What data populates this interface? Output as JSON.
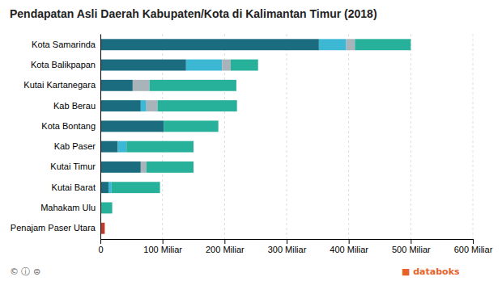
{
  "chart_data": {
    "type": "bar",
    "orientation": "horizontal",
    "stacked": true,
    "title": "Pendapatan Asli Daerah Kabupaten/Kota di Kalimantan Timur (2018)",
    "categories": [
      "Penajam Paser Utara",
      "Mahakam Ulu",
      "Kutai Barat",
      "Kutai Timur",
      "Kab Paser",
      "Kota Bontang",
      "Kab Berau",
      "Kutai Kartanegara",
      "Kota Balikpapan",
      "Kota Samarinda"
    ],
    "series": [
      {
        "colors": [
          "#c0392b",
          "#1c6c80",
          "#1c6c80",
          "#1c6c80",
          "#1c6c80",
          "#1c6c80",
          "#1c6c80",
          "#1c6c80",
          "#1c6c80",
          "#1c6c80"
        ],
        "values": [
          7,
          0,
          13,
          65,
          28,
          102,
          65,
          52,
          138,
          352
        ]
      },
      {
        "color": "#3db8d4",
        "values": [
          0,
          0,
          5,
          0,
          14,
          0,
          9,
          0,
          58,
          44
        ]
      },
      {
        "color": "#a8b4ba",
        "values": [
          0,
          0,
          0,
          9,
          0,
          0,
          18,
          27,
          14,
          14
        ]
      },
      {
        "color": "#27b09a",
        "values": [
          0,
          19,
          78,
          76,
          108,
          88,
          128,
          140,
          44,
          90
        ]
      }
    ],
    "xlim": [
      0,
      600
    ],
    "xticks": [
      0,
      {
        "value": 100,
        "label": "100 Miliar"
      },
      {
        "value": 200,
        "label": "200 Miliar"
      },
      {
        "value": 300,
        "label": "300 Miliar"
      },
      {
        "value": 400,
        "label": "400 Miliar"
      },
      {
        "value": 500,
        "label": "500 Miliar"
      },
      {
        "value": 600,
        "label": "600 Miliar"
      }
    ],
    "grid": true,
    "annotations": [
      "© ⓘ ⊜",
      "■ databoks"
    ]
  }
}
